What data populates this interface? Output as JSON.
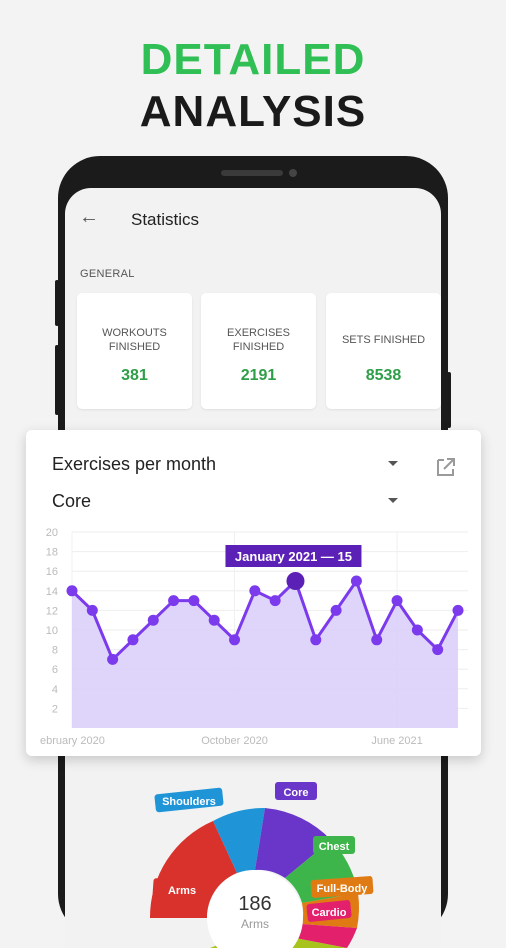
{
  "headline": {
    "line1": "DETAILED",
    "line2": "ANALYSIS"
  },
  "appbar": {
    "title": "Statistics"
  },
  "general": {
    "section_label": "GENERAL",
    "stats": [
      {
        "label_line1": "WORKOUTS",
        "label_line2": "FINISHED",
        "value": "381"
      },
      {
        "label_line1": "EXERCISES",
        "label_line2": "FINISHED",
        "value": "2191"
      },
      {
        "label_line1": "SETS FINISHED",
        "label_line2": "",
        "value": "8538"
      }
    ]
  },
  "card": {
    "metric_select": "Exercises per month",
    "category_select": "Core",
    "tooltip": "January 2021 — 15"
  },
  "chart_data": {
    "type": "area",
    "y_ticks": [
      "20",
      "18",
      "16",
      "14",
      "12",
      "10",
      "8",
      "6",
      "4",
      "2"
    ],
    "ylim": [
      0,
      20
    ],
    "x_labels": [
      "ebruary 2020",
      "October 2020",
      "June 2021"
    ],
    "values": [
      14,
      12,
      7,
      9,
      11,
      13,
      13,
      11,
      9,
      14,
      13,
      15,
      9,
      12,
      15,
      9,
      13,
      10,
      8,
      12
    ],
    "highlight_index": 11,
    "colors": {
      "line": "#7c3aed",
      "fill": "#dcd0fb",
      "tooltip": "#5b21b6"
    }
  },
  "donut": {
    "center_value": "186",
    "center_label": "Arms",
    "segments": [
      {
        "label": "Shoulders",
        "color": "#1f95d8"
      },
      {
        "label": "Core",
        "color": "#6a35c9"
      },
      {
        "label": "Chest",
        "color": "#3db54a"
      },
      {
        "label": "Full-Body",
        "color": "#e07b14"
      },
      {
        "label": "Cardio",
        "color": "#e2206b"
      },
      {
        "label": "Arms",
        "color": "#d9312b"
      }
    ]
  }
}
